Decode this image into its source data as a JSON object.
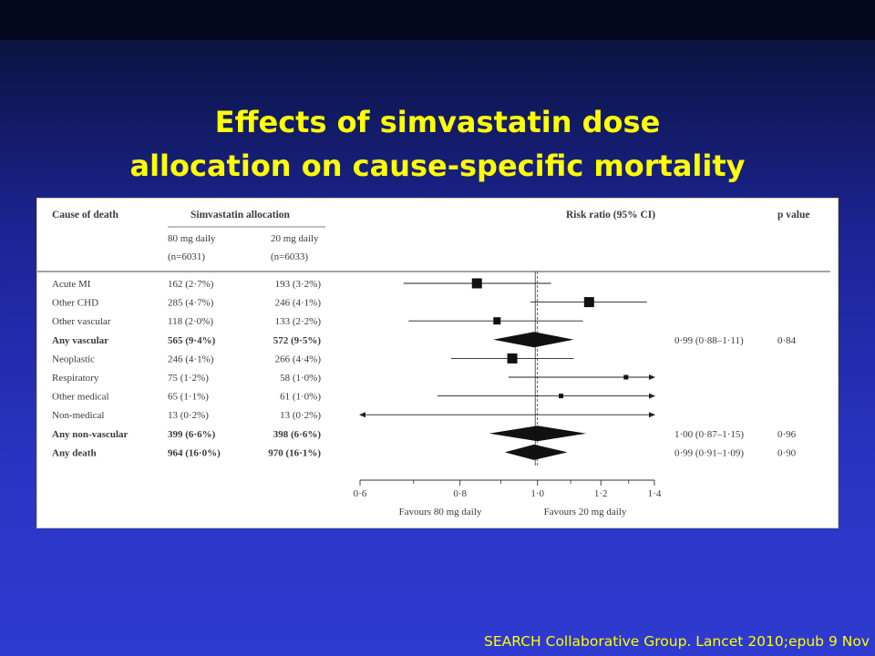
{
  "slide": {
    "title_line1": "Effects of simvastatin dose",
    "title_line2": "allocation on cause-specific mortality",
    "citation": "SEARCH Collaborative Group. Lancet 2010;epub 9 Nov"
  },
  "table": {
    "headers": {
      "cause": "Cause of death",
      "allocation": "Simvastatin allocation",
      "group_80_line1": "80 mg daily",
      "group_80_line2": "(n=6031)",
      "group_20_line1": "20 mg daily",
      "group_20_line2": "(n=6033)",
      "risk_ratio": "Risk ratio (95% CI)",
      "p_value": "p value"
    }
  },
  "chart_data": {
    "type": "forest",
    "x_scale": "log",
    "xlim": [
      0.6,
      1.4
    ],
    "reference_line": 1.0,
    "x_ticks": [
      "0·6",
      "0·8",
      "1·0",
      "1·2",
      "1·4"
    ],
    "x_tick_values": [
      0.6,
      0.8,
      1.0,
      1.2,
      1.4
    ],
    "x_minor_ticks": [
      0.7,
      0.9,
      1.1,
      1.3
    ],
    "label_left": "Favours 80 mg daily",
    "label_right": "Favours 20 mg daily",
    "rows": [
      {
        "cause": "Acute MI",
        "n80": "162 (2·7%)",
        "n20": "193 (3·2%)",
        "kind": "square",
        "rr": 0.84,
        "lo": 0.68,
        "hi": 1.04,
        "weight": "large",
        "bold": false,
        "rr_text": "",
        "p_text": ""
      },
      {
        "cause": "Other CHD",
        "n80": "285 (4·7%)",
        "n20": "246 (4·1%)",
        "kind": "square",
        "rr": 1.16,
        "lo": 0.98,
        "hi": 1.37,
        "weight": "large",
        "bold": false,
        "rr_text": "",
        "p_text": ""
      },
      {
        "cause": "Other vascular",
        "n80": "118 (2·0%)",
        "n20": "133 (2·2%)",
        "kind": "square",
        "rr": 0.89,
        "lo": 0.69,
        "hi": 1.14,
        "weight": "medium",
        "bold": false,
        "rr_text": "",
        "p_text": ""
      },
      {
        "cause": "Any vascular",
        "n80": "565 (9·4%)",
        "n20": "572 (9·5%)",
        "kind": "diamond",
        "rr": 0.99,
        "lo": 0.88,
        "hi": 1.11,
        "bold": true,
        "rr_text": "0·99 (0·88–1·11)",
        "p_text": "0·84"
      },
      {
        "cause": "Neoplastic",
        "n80": "246 (4·1%)",
        "n20": "266 (4·4%)",
        "kind": "square",
        "rr": 0.93,
        "lo": 0.78,
        "hi": 1.11,
        "weight": "large",
        "bold": false,
        "rr_text": "",
        "p_text": ""
      },
      {
        "cause": "Respiratory",
        "n80": "75 (1·2%)",
        "n20": "58 (1·0%)",
        "kind": "square",
        "rr": 1.29,
        "lo": 0.92,
        "hi": 1.4,
        "weight": "small",
        "bold": false,
        "arrow_right": true,
        "rr_text": "",
        "p_text": ""
      },
      {
        "cause": "Other medical",
        "n80": "65 (1·1%)",
        "n20": "61 (1·0%)",
        "kind": "square",
        "rr": 1.07,
        "lo": 0.75,
        "hi": 1.4,
        "weight": "small",
        "bold": false,
        "arrow_right": true,
        "rr_text": "",
        "p_text": ""
      },
      {
        "cause": "Non-medical",
        "n80": "13 (0·2%)",
        "n20": "13 (0·2%)",
        "kind": "square",
        "rr": 1.0,
        "lo": 0.6,
        "hi": 1.4,
        "weight": "none",
        "bold": false,
        "arrow_left": true,
        "arrow_right": true,
        "rr_text": "",
        "p_text": ""
      },
      {
        "cause": "Any non-vascular",
        "n80": "399 (6·6%)",
        "n20": "398 (6·6%)",
        "kind": "diamond",
        "rr": 1.0,
        "lo": 0.87,
        "hi": 1.15,
        "bold": true,
        "rr_text": "1·00 (0·87–1·15)",
        "p_text": "0·96"
      },
      {
        "cause": "Any death",
        "n80": "964 (16·0%)",
        "n20": "970 (16·1%)",
        "kind": "diamond",
        "rr": 0.99,
        "lo": 0.91,
        "hi": 1.09,
        "bold": true,
        "rr_text": "0·99 (0·91–1·09)",
        "p_text": "0·90"
      }
    ]
  }
}
